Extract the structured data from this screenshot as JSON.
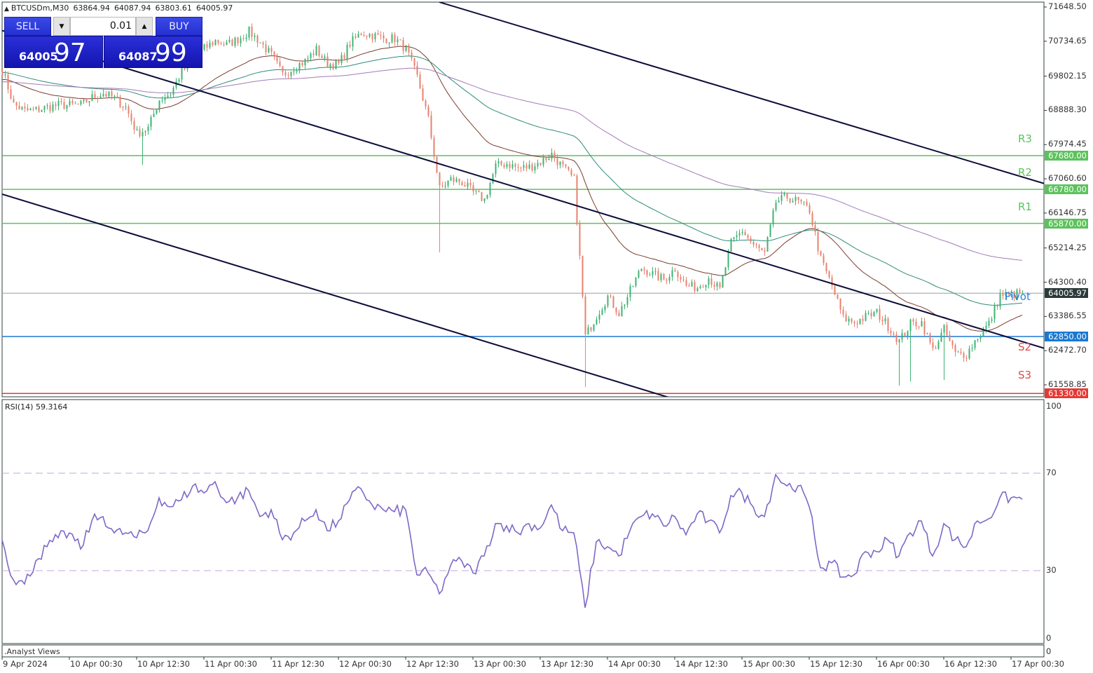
{
  "header": {
    "symbol": "BTCUSDm,M30",
    "open": "63864.94",
    "high": "64087.94",
    "low": "63803.61",
    "close": "64005.97"
  },
  "trade_panel": {
    "sell_label": "SELL",
    "buy_label": "BUY",
    "lot_value": "0.01",
    "sell_price_prefix": "64005",
    "sell_price_big": "97",
    "buy_price_prefix": "64087",
    "buy_price_big": "99",
    "color": "#2430d0"
  },
  "chart_data": [
    {
      "type": "candlestick",
      "symbol": "BTCUSDm",
      "timeframe": "M30",
      "start": "9 Apr 12:30",
      "sample_interval_minutes": 120,
      "closes_sampled": [
        69964,
        69046,
        68878,
        68897,
        68972,
        69028,
        69028,
        69028,
        69234,
        69346,
        69215,
        68972,
        68279,
        68410,
        69178,
        69346,
        69926,
        70207,
        70544,
        70750,
        70638,
        70788,
        70993,
        70712,
        70357,
        69833,
        70039,
        70207,
        70507,
        70132,
        70114,
        70675,
        70956,
        70900,
        70806,
        70806,
        70525,
        69776,
        68653,
        66781,
        67043,
        66968,
        66688,
        66500,
        67399,
        67474,
        67343,
        67380,
        67511,
        67717,
        67362,
        67025,
        62850,
        63412,
        63917,
        63468,
        64067,
        64685,
        64516,
        64367,
        64666,
        64198,
        64161,
        64423,
        64086,
        65340,
        65677,
        65284,
        65060,
        66445,
        66576,
        66445,
        66220,
        64910,
        64198,
        63337,
        63225,
        63374,
        63487,
        63131,
        62720,
        63188,
        63225,
        62476,
        63038,
        62382,
        62382,
        62850,
        63188,
        63955,
        63974,
        64006
      ],
      "spike_lows": [
        {
          "time": "10 Apr 13:30",
          "low": 67436
        },
        {
          "time": "12 Apr 18:30",
          "low": 65096
        },
        {
          "time": "13 Apr 20:30",
          "low": 61502
        },
        {
          "time": "16 Apr 04:30",
          "low": 61540
        },
        {
          "time": "16 Apr 06:30",
          "low": 61650
        },
        {
          "time": "16 Apr 12:30",
          "low": 61690
        }
      ],
      "last_price": "64005.97",
      "y_ticks": [
        "71648.50",
        "70734.65",
        "69802.15",
        "68888.30",
        "67974.45",
        "67060.60",
        "66146.75",
        "65214.25",
        "64300.40",
        "63386.55",
        "62472.70",
        "61558.85"
      ],
      "ylim": [
        61330,
        71800
      ],
      "x_ticks": [
        "9 Apr 2024",
        "10 Apr 00:30",
        "10 Apr 12:30",
        "11 Apr 00:30",
        "11 Apr 12:30",
        "12 Apr 00:30",
        "12 Apr 12:30",
        "13 Apr 00:30",
        "13 Apr 12:30",
        "14 Apr 00:30",
        "14 Apr 12:30",
        "15 Apr 00:30",
        "15 Apr 12:30",
        "16 Apr 00:30",
        "16 Apr 12:30",
        "17 Apr 00:30"
      ],
      "levels": [
        {
          "label": "R3",
          "price": "67680.00",
          "color": "#5cc25c"
        },
        {
          "label": "R2",
          "price": "66780.00",
          "color": "#5cc25c"
        },
        {
          "label": "R1",
          "price": "65870.00",
          "color": "#5cc25c"
        },
        {
          "label": "",
          "price": "62850.00",
          "color": "#1a78d0"
        },
        {
          "label": "",
          "price": "61330.00",
          "color": "#e53935"
        }
      ],
      "pivot_labels": {
        "pivot": "Pivot",
        "s2": "S2",
        "s3": "S3"
      },
      "trendlines": [
        {
          "from": {
            "time": "12 Apr 18:30",
            "price": 71780
          },
          "to": {
            "time": "17 Apr 06:30",
            "price": 66931
          }
        },
        {
          "from": {
            "time": "9 Apr 12:30",
            "price": 71021
          },
          "to": {
            "time": "17 Apr 06:30",
            "price": 62532
          }
        },
        {
          "from": {
            "time": "9 Apr 12:30",
            "price": 66650
          },
          "to": {
            "time": "14 Apr 11:30",
            "price": 61221
          }
        }
      ],
      "colors": {
        "bull": "#3cb371",
        "bear": "#e8806e",
        "ma_fast": "#7a3b2e",
        "ma_mid": "#2e8b7a",
        "ma_slow": "#a27bb8",
        "trendline": "#0c0c3a"
      }
    },
    {
      "type": "line",
      "label": "RSI(14) 59.3164",
      "start": "9 Apr 12:30",
      "sample_interval_minutes": 120,
      "values": [
        42.7,
        26.3,
        24.5,
        34,
        39.8,
        43.5,
        45.5,
        38.9,
        50.4,
        52.2,
        45.5,
        45.5,
        43.5,
        46.4,
        59.9,
        56.2,
        59.1,
        64.8,
        61.9,
        66.5,
        57.9,
        59.9,
        62.8,
        52.2,
        55,
        42.7,
        45.5,
        50.4,
        55,
        46.4,
        50.4,
        59.1,
        63.7,
        57,
        55,
        54.2,
        55,
        28.3,
        29.1,
        20.5,
        32,
        34,
        29.1,
        36,
        49.3,
        48.4,
        45.5,
        49.3,
        47.5,
        57,
        46.4,
        45.5,
        14.8,
        41.8,
        39.8,
        36,
        46.4,
        52.2,
        53.3,
        48.4,
        52.2,
        44.7,
        53.3,
        50.4,
        45.5,
        60.8,
        61.9,
        56.2,
        52.2,
        69.4,
        64.8,
        64.8,
        56.2,
        31.2,
        33.2,
        27.4,
        28.3,
        37.8,
        37.8,
        42.7,
        36,
        45.5,
        50.4,
        36,
        49.3,
        42.7,
        39.8,
        50.4,
        51.3,
        59.9,
        59.9,
        59.3
      ],
      "ylim": [
        0,
        100
      ],
      "y_ticks": [
        "100",
        "70",
        "30",
        "0"
      ],
      "levels": [
        70,
        30
      ],
      "color": "#7e68c8",
      "level_color": "#c9a6d8"
    }
  ],
  "subwindow": {
    "label": ".Analyst Views",
    "value": "0"
  }
}
